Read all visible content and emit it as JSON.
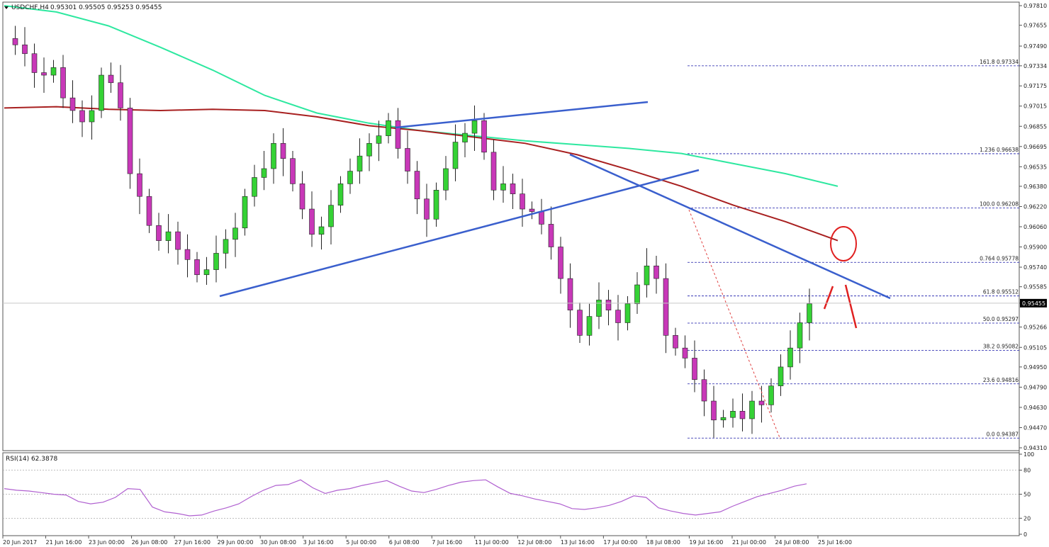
{
  "header": {
    "symbol_timeframe": "USDCHF,H4",
    "ohlc": "0.95301 0.95505 0.95253 0.95455",
    "rsi_label": "RSI(14) 62.3878"
  },
  "chart_data": [
    {
      "type": "candlestick",
      "title": "USDCHF,H4",
      "ylim": [
        0.9431,
        0.9781
      ],
      "price_ticks": [
        "0.97810",
        "0.97655",
        "0.97490",
        "0.97334",
        "0.97175",
        "0.97015",
        "0.96855",
        "0.96695",
        "0.96535",
        "0.96380",
        "0.96220",
        "0.96060",
        "0.95900",
        "0.95740",
        "0.95585",
        "0.95455",
        "0.95266",
        "0.95105",
        "0.94950",
        "0.94790",
        "0.94630",
        "0.94470",
        "0.94310"
      ],
      "current_price": "0.95455",
      "date_labels": [
        "20 Jun 2017",
        "21 Jun 16:00",
        "23 Jun 00:00",
        "26 Jun 08:00",
        "27 Jun 16:00",
        "29 Jun 00:00",
        "30 Jun 08:00",
        "3 Jul 16:00",
        "5 Jul 00:00",
        "6 Jul 08:00",
        "7 Jul 16:00",
        "11 Jul 00:00",
        "12 Jul 08:00",
        "13 Jul 16:00",
        "17 Jul 00:00",
        "18 Jul 08:00",
        "19 Jul 16:00",
        "21 Jul 00:00",
        "24 Jul 08:00",
        "25 Jul 16:00"
      ],
      "price_path": [
        0.9755,
        0.975,
        0.9743,
        0.9728,
        0.9726,
        0.9732,
        0.9708,
        0.9698,
        0.9689,
        0.9698,
        0.9726,
        0.972,
        0.97,
        0.9648,
        0.963,
        0.9607,
        0.9595,
        0.9602,
        0.9588,
        0.958,
        0.9568,
        0.9572,
        0.9585,
        0.9596,
        0.9605,
        0.963,
        0.9645,
        0.9652,
        0.9672,
        0.966,
        0.964,
        0.962,
        0.96,
        0.9606,
        0.9623,
        0.964,
        0.965,
        0.9662,
        0.9672,
        0.9678,
        0.969,
        0.9668,
        0.965,
        0.9628,
        0.9612,
        0.9635,
        0.9652,
        0.9673,
        0.968,
        0.969,
        0.9665,
        0.9635,
        0.964,
        0.9632,
        0.962,
        0.9618,
        0.9608,
        0.959,
        0.9565,
        0.954,
        0.952,
        0.9535,
        0.9548,
        0.954,
        0.953,
        0.9545,
        0.956,
        0.9575,
        0.9565,
        0.952,
        0.951,
        0.9502,
        0.9485,
        0.9468,
        0.9453,
        0.9455,
        0.946,
        0.9454,
        0.9468,
        0.9465,
        0.948,
        0.9495,
        0.951,
        0.953,
        0.9545
      ],
      "moving_averages": [
        {
          "color": "#2ee8a0",
          "values": [
            0.9781,
            0.9776,
            0.9765,
            0.9748,
            0.973,
            0.971,
            0.9696,
            0.9688,
            0.9682,
            0.9678,
            0.9674,
            0.9671,
            0.9668,
            0.9664,
            0.9656,
            0.9648,
            0.9638
          ]
        },
        {
          "color": "#a82020",
          "values": [
            0.97,
            0.9701,
            0.9699,
            0.9698,
            0.9699,
            0.9698,
            0.9693,
            0.9686,
            0.9682,
            0.9677,
            0.9672,
            0.9663,
            0.9651,
            0.9638,
            0.9623,
            0.961,
            0.9595
          ]
        }
      ],
      "fibonacci_levels": [
        {
          "label": "161.8 0.97334",
          "value": 0.97334
        },
        {
          "label": "1.236 0.96638",
          "value": 0.96638
        },
        {
          "label": "100.0 0.96208",
          "value": 0.96208
        },
        {
          "label": "0.764 0.95778",
          "value": 0.95778
        },
        {
          "label": "61.8 0.95512",
          "value": 0.95512
        },
        {
          "label": "50.0 0.95297",
          "value": 0.95297
        },
        {
          "label": "38.2 0.95082",
          "value": 0.95082
        },
        {
          "label": "23.6 0.94816",
          "value": 0.94816
        },
        {
          "label": "0.0 0.94387",
          "value": 0.94387
        }
      ],
      "colors": {
        "bull": "#35d235",
        "bear": "#c838b8",
        "trendline": "#3a5fcd",
        "fib": "#1a1aa8",
        "annotation": "#e02020"
      }
    },
    {
      "type": "line",
      "title": "RSI(14) 62.3878",
      "ylim": [
        0,
        100
      ],
      "level_ticks": [
        "100",
        "80",
        "50",
        "20",
        "0"
      ],
      "color": "#b060d0",
      "values": [
        57,
        55,
        54,
        52,
        50,
        49,
        41,
        38,
        40,
        46,
        57,
        56,
        34,
        28,
        26,
        23,
        24,
        29,
        33,
        38,
        47,
        55,
        61,
        62,
        68,
        58,
        51,
        55,
        57,
        61,
        64,
        67,
        60,
        54,
        52,
        56,
        61,
        65,
        67,
        68,
        59,
        51,
        48,
        44,
        41,
        38,
        32,
        31,
        33,
        36,
        41,
        48,
        46,
        33,
        29,
        26,
        24,
        26,
        28,
        35,
        41,
        47,
        51,
        55,
        60,
        63
      ]
    }
  ]
}
